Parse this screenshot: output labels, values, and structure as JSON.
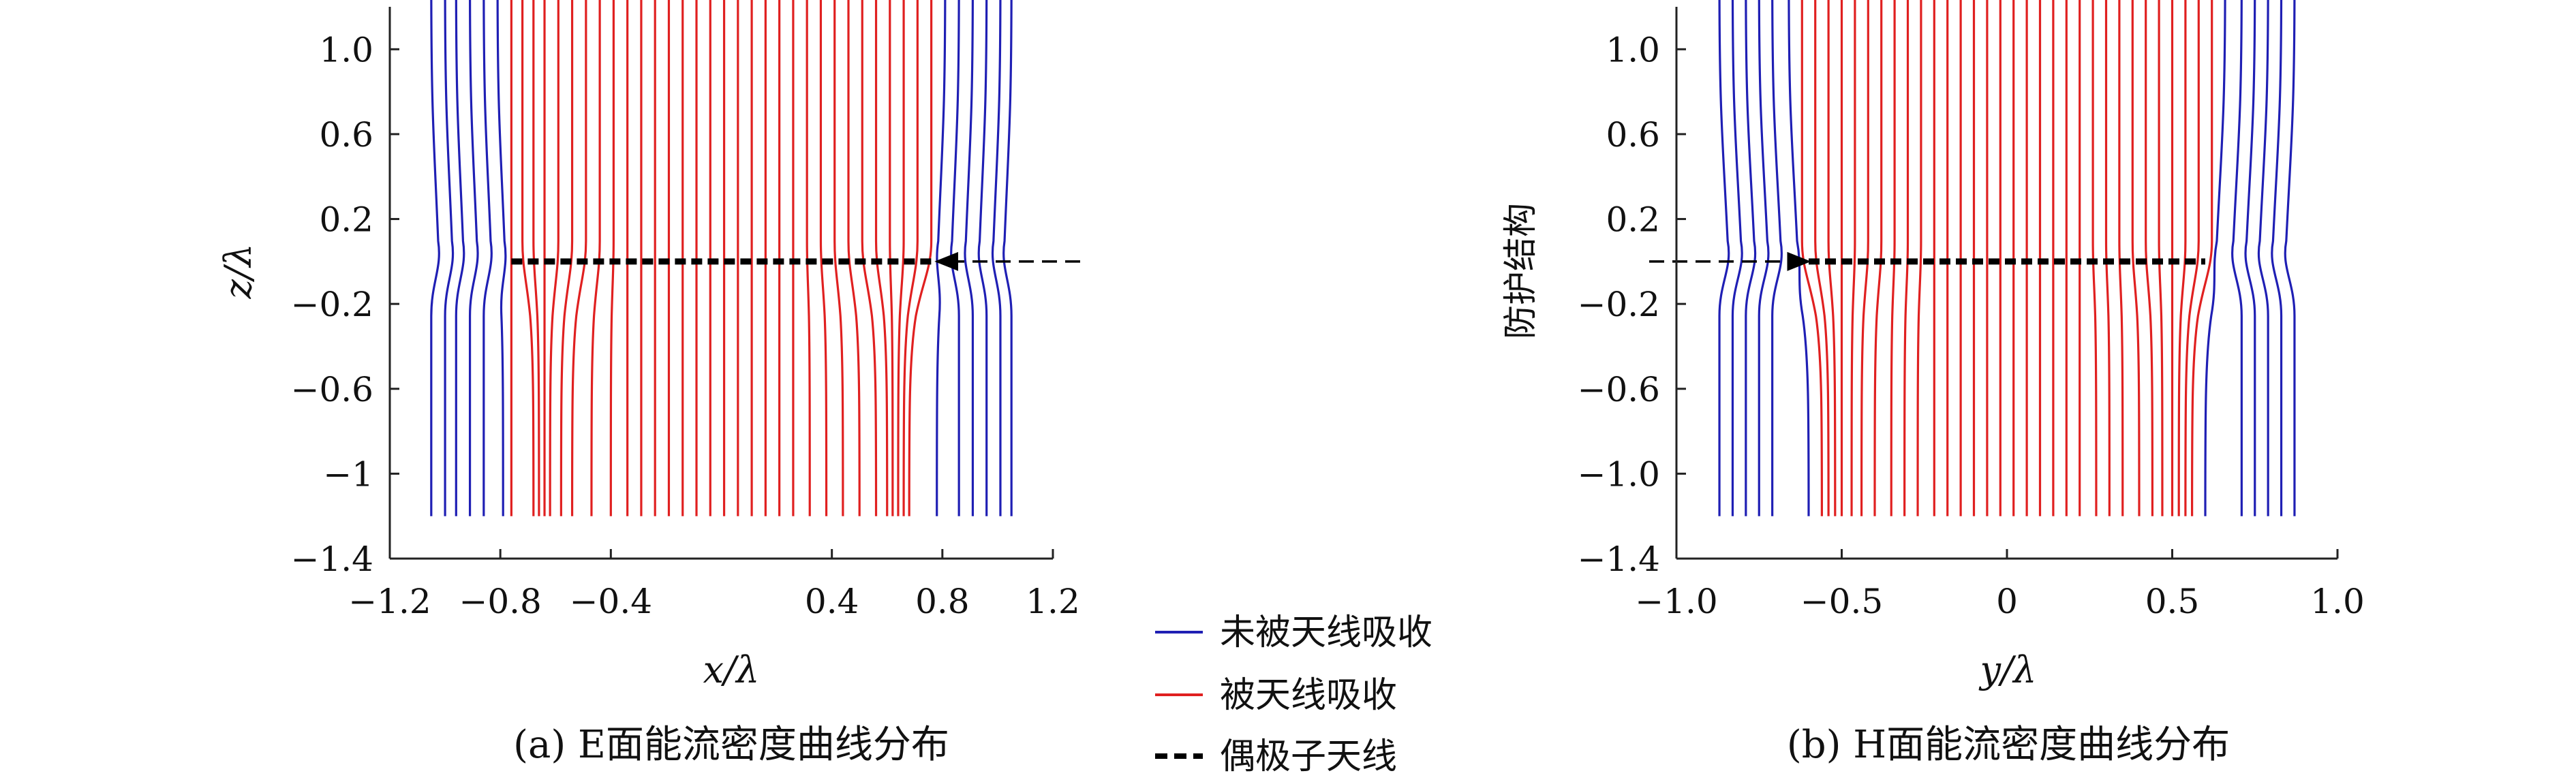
{
  "chart_data": [
    {
      "type": "line",
      "panel": "a",
      "caption": "(a) E面能流密度曲线分布",
      "xlabel": "x/λ",
      "ylabel": "z/λ",
      "xlim": [
        -1.2,
        1.2
      ],
      "ylim": [
        -1.4,
        1.2
      ],
      "xticks": [
        "−1.2",
        "−0.8",
        "−0.4",
        "0.4",
        "0.8",
        "1.2"
      ],
      "xtick_values": [
        -1.2,
        -0.8,
        -0.4,
        0.4,
        0.8,
        1.2
      ],
      "yticks": [
        "1.0",
        "0.6",
        "0.2",
        "−0.2",
        "−0.6",
        "−1",
        "−1.4"
      ],
      "ytick_values": [
        1.0,
        0.6,
        0.2,
        -0.2,
        -0.6,
        -1.0,
        -1.4
      ],
      "antenna": {
        "x_start": -0.76,
        "x_end": 0.78,
        "z": 0.0
      },
      "arrow": {
        "from_x": 1.2,
        "to_x": 0.78,
        "z": 0.0
      },
      "series": [
        {
          "name": "未被天线吸收",
          "color": "#1f1fb4",
          "x_start": [
            -1.05,
            -1.0,
            -0.96,
            -0.91,
            -0.86,
            -0.81,
            0.81,
            0.86,
            0.91,
            0.96,
            1.01,
            1.05
          ],
          "x_end": [
            -1.05,
            -1.0,
            -0.96,
            -0.91,
            -0.86,
            -0.79,
            0.78,
            0.86,
            0.91,
            0.96,
            1.01,
            1.05
          ]
        },
        {
          "name": "被天线吸收",
          "color": "#e02020",
          "x_start": [
            -0.76,
            -0.72,
            -0.68,
            -0.64,
            -0.59,
            -0.54,
            -0.49,
            -0.44,
            -0.39,
            -0.34,
            -0.29,
            -0.24,
            -0.19,
            -0.14,
            -0.09,
            -0.04,
            0.01,
            0.06,
            0.11,
            0.16,
            0.21,
            0.26,
            0.31,
            0.36,
            0.41,
            0.46,
            0.51,
            0.56,
            0.61,
            0.66,
            0.71,
            0.76
          ],
          "x_end": [
            -0.76,
            -0.68,
            -0.66,
            -0.64,
            -0.62,
            -0.58,
            -0.54,
            -0.47,
            -0.4,
            -0.34,
            -0.29,
            -0.24,
            -0.19,
            -0.14,
            -0.09,
            -0.04,
            0.01,
            0.06,
            0.11,
            0.16,
            0.21,
            0.26,
            0.32,
            0.38,
            0.44,
            0.5,
            0.56,
            0.6,
            0.62,
            0.64,
            0.66,
            0.68
          ]
        }
      ]
    },
    {
      "type": "line",
      "panel": "b",
      "caption": "(b) H面能流密度曲线分布",
      "xlabel": "y/λ",
      "ylabel": "",
      "xlim": [
        -1.0,
        1.0
      ],
      "ylim": [
        -1.4,
        1.2
      ],
      "xticks": [
        "−1.0",
        "−0.5",
        "0",
        "0.5",
        "1.0"
      ],
      "xtick_values": [
        -1.0,
        -0.5,
        0.0,
        0.5,
        1.0
      ],
      "yticks": [
        "1.0",
        "0.6",
        "0.2",
        "−0.2",
        "−0.6",
        "−1.0",
        "−1.4"
      ],
      "ytick_values": [
        1.0,
        0.6,
        0.2,
        -0.2,
        -0.6,
        -1.0,
        -1.4
      ],
      "antenna": {
        "x_start": -0.6,
        "x_end": 0.6,
        "z": 0.0
      },
      "arrow": {
        "from_x": -1.0,
        "to_x": -0.6,
        "z": 0.0
      },
      "side_label": "防护结构",
      "series": [
        {
          "name": "未被天线吸收",
          "color": "#1f1fb4",
          "x_start": [
            -0.87,
            -0.83,
            -0.79,
            -0.75,
            -0.71,
            -0.66,
            0.66,
            0.71,
            0.75,
            0.79,
            0.83,
            0.87
          ],
          "x_end": [
            -0.87,
            -0.83,
            -0.79,
            -0.75,
            -0.71,
            -0.6,
            0.6,
            0.71,
            0.75,
            0.79,
            0.83,
            0.87
          ]
        },
        {
          "name": "被天线吸收",
          "color": "#e02020",
          "x_start": [
            -0.62,
            -0.58,
            -0.54,
            -0.5,
            -0.46,
            -0.42,
            -0.38,
            -0.34,
            -0.3,
            -0.26,
            -0.22,
            -0.18,
            -0.14,
            -0.1,
            -0.06,
            -0.02,
            0.02,
            0.06,
            0.1,
            0.14,
            0.18,
            0.22,
            0.26,
            0.3,
            0.34,
            0.38,
            0.42,
            0.46,
            0.5,
            0.54,
            0.58,
            0.62
          ],
          "x_end": [
            -0.56,
            -0.54,
            -0.52,
            -0.5,
            -0.47,
            -0.44,
            -0.4,
            -0.35,
            -0.31,
            -0.27,
            -0.22,
            -0.18,
            -0.14,
            -0.1,
            -0.06,
            -0.02,
            0.02,
            0.06,
            0.1,
            0.14,
            0.18,
            0.22,
            0.27,
            0.31,
            0.35,
            0.4,
            0.44,
            0.47,
            0.5,
            0.52,
            0.54,
            0.56
          ]
        }
      ]
    }
  ],
  "legend": {
    "items": [
      {
        "label": "未被天线吸收",
        "color": "#1f1fb4",
        "style": "solid"
      },
      {
        "label": "被天线吸收",
        "color": "#e02020",
        "style": "solid"
      },
      {
        "label": "偶极子天线",
        "color": "#000000",
        "style": "dashed"
      }
    ]
  }
}
